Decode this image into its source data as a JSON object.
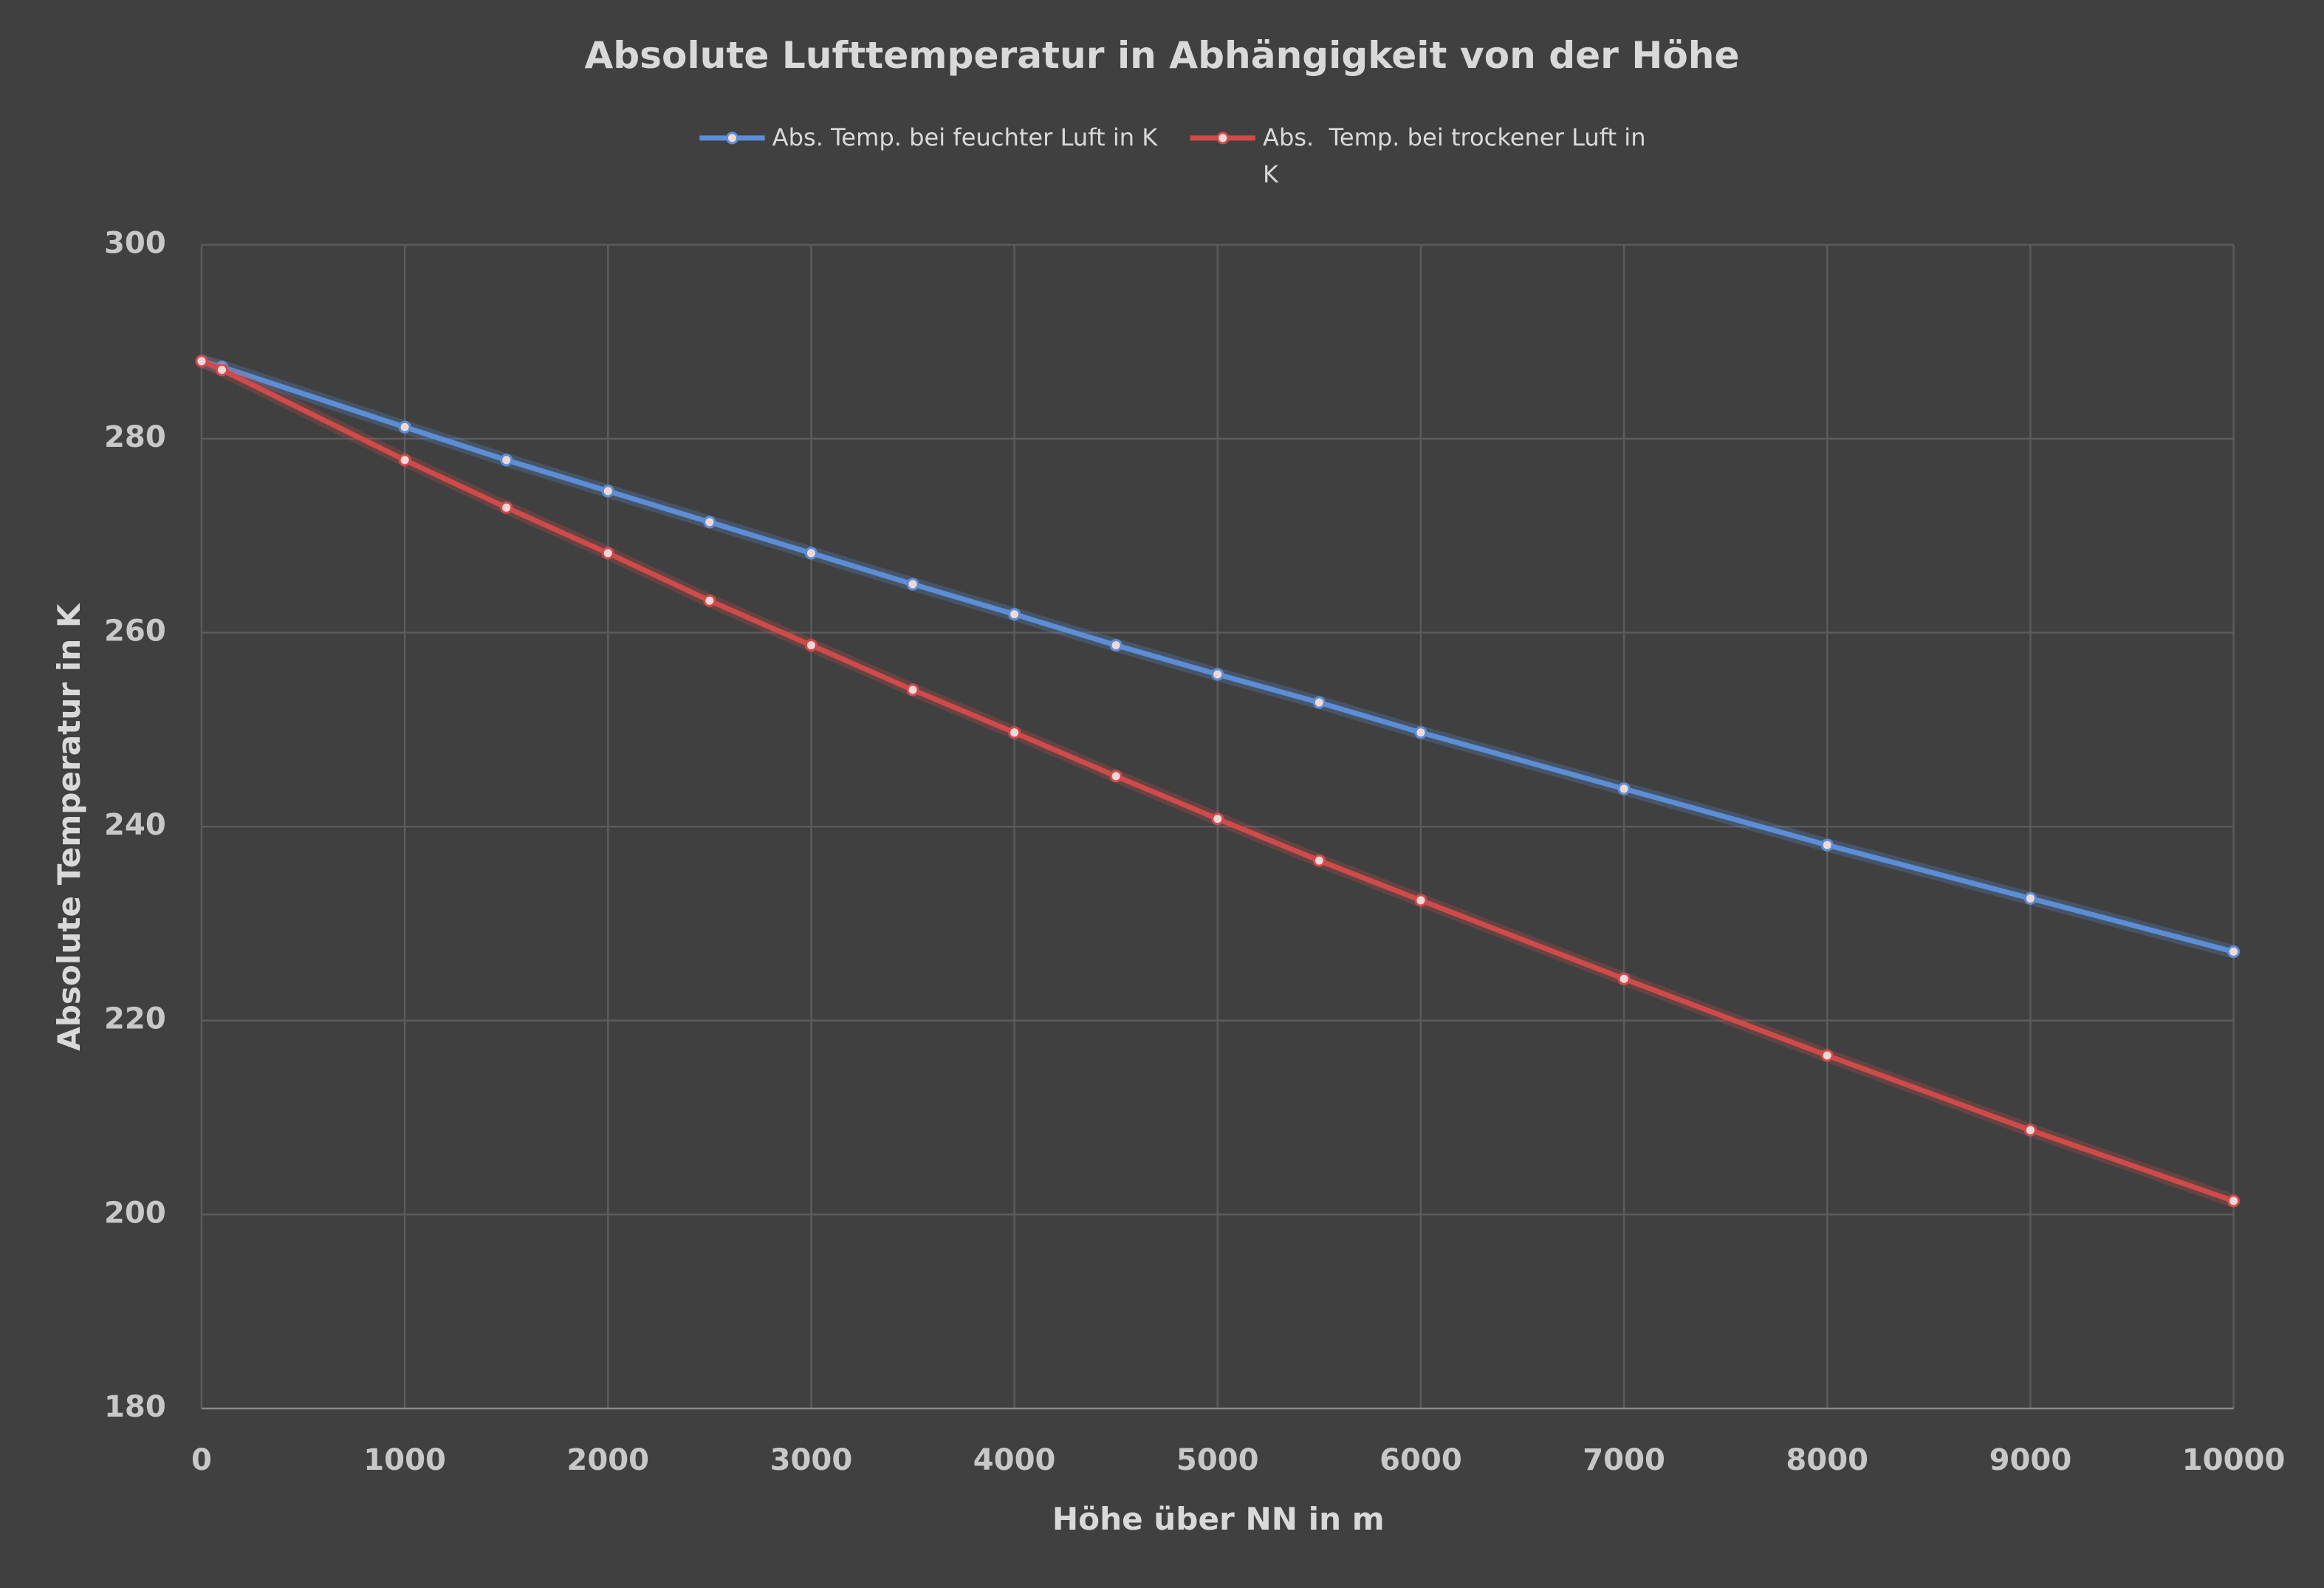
{
  "chart_data": {
    "type": "line",
    "title": "Absolute Lufttemperatur in Abhängigkeit von der Höhe",
    "x_label": "Höhe über NN in m",
    "y_label": "Absolute Temperatur in K",
    "x": [
      0,
      100,
      1000,
      1500,
      2000,
      2500,
      3000,
      3500,
      4000,
      4500,
      5000,
      5500,
      6000,
      7000,
      8000,
      9000,
      10000
    ],
    "series": [
      {
        "name": "Abs. Temp. bei feuchter Luft in K",
        "color": "#5b8ed6",
        "values": [
          288,
          287.4,
          281.2,
          277.8,
          274.6,
          271.4,
          268.2,
          265,
          261.9,
          258.7,
          255.7,
          252.8,
          249.7,
          243.9,
          238.1,
          232.6,
          227.1
        ]
      },
      {
        "name": "Abs.  Temp. bei trockener Luft in K",
        "color": "#d04a4a",
        "values": [
          288,
          287.1,
          277.8,
          272.9,
          268.2,
          263.3,
          258.7,
          254.1,
          249.7,
          245.2,
          240.8,
          236.5,
          232.4,
          224.3,
          216.4,
          208.7,
          201.4
        ]
      }
    ],
    "xlim": [
      0,
      10000
    ],
    "xticks": [
      0,
      1000,
      2000,
      3000,
      4000,
      5000,
      6000,
      7000,
      8000,
      9000,
      10000
    ],
    "ylim": [
      180,
      300
    ],
    "yticks": [
      180,
      200,
      220,
      240,
      260,
      280,
      300
    ],
    "grid": true,
    "legend": "top"
  }
}
